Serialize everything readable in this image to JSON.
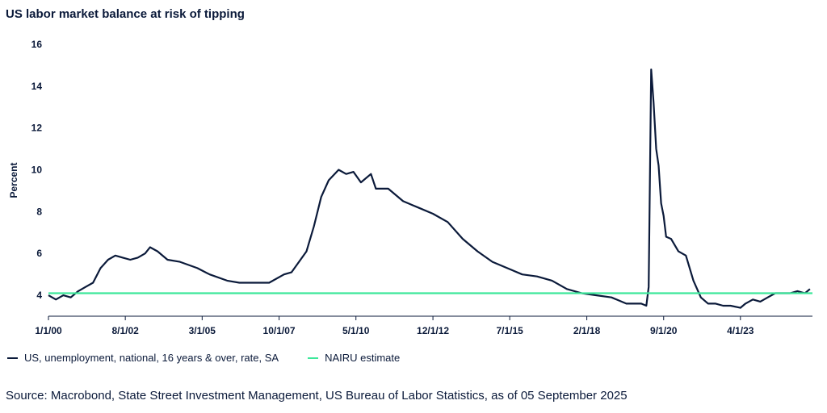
{
  "title": "US labor market balance at risk of tipping",
  "source": "Source: Macrobond, State Street Investment Management, US Bureau of Labor Statistics, as of 05 September 2025",
  "colors": {
    "unemployment": "#0b1a3a",
    "nairu": "#3de89b",
    "axis": "#0b1a3a"
  },
  "chart_data": {
    "type": "line",
    "title": "US labor market balance at risk of tipping",
    "xlabel": "",
    "ylabel": "Percent",
    "ylim": [
      3,
      16
    ],
    "xlim": [
      "2000-01-01",
      "2025-09-01"
    ],
    "yticks": [
      4,
      6,
      8,
      10,
      12,
      14,
      16
    ],
    "xtick_labels": [
      "1/1/00",
      "8/1/02",
      "3/1/05",
      "10/1/07",
      "5/1/10",
      "12/1/12",
      "7/1/15",
      "2/1/18",
      "9/1/20",
      "4/1/23"
    ],
    "xtick_dates": [
      "2000-01-01",
      "2002-08-01",
      "2005-03-01",
      "2007-10-01",
      "2010-05-01",
      "2012-12-01",
      "2015-07-01",
      "2018-02-01",
      "2020-09-01",
      "2023-04-01"
    ],
    "grid": false,
    "legend_position": "bottom-left",
    "series": [
      {
        "name": "US, unemployment, national, 16 years & over, rate, SA",
        "points": [
          [
            "2000-01-01",
            4.0
          ],
          [
            "2000-04-01",
            3.8
          ],
          [
            "2000-07-01",
            4.0
          ],
          [
            "2000-10-01",
            3.9
          ],
          [
            "2001-01-01",
            4.2
          ],
          [
            "2001-04-01",
            4.4
          ],
          [
            "2001-07-01",
            4.6
          ],
          [
            "2001-10-01",
            5.3
          ],
          [
            "2002-01-01",
            5.7
          ],
          [
            "2002-04-01",
            5.9
          ],
          [
            "2002-07-01",
            5.8
          ],
          [
            "2002-10-01",
            5.7
          ],
          [
            "2003-01-01",
            5.8
          ],
          [
            "2003-04-01",
            6.0
          ],
          [
            "2003-06-01",
            6.3
          ],
          [
            "2003-09-01",
            6.1
          ],
          [
            "2004-01-01",
            5.7
          ],
          [
            "2004-06-01",
            5.6
          ],
          [
            "2005-01-01",
            5.3
          ],
          [
            "2005-06-01",
            5.0
          ],
          [
            "2006-01-01",
            4.7
          ],
          [
            "2006-06-01",
            4.6
          ],
          [
            "2007-01-01",
            4.6
          ],
          [
            "2007-06-01",
            4.6
          ],
          [
            "2007-12-01",
            5.0
          ],
          [
            "2008-03-01",
            5.1
          ],
          [
            "2008-06-01",
            5.6
          ],
          [
            "2008-09-01",
            6.1
          ],
          [
            "2008-12-01",
            7.3
          ],
          [
            "2009-03-01",
            8.7
          ],
          [
            "2009-06-01",
            9.5
          ],
          [
            "2009-10-01",
            10.0
          ],
          [
            "2010-01-01",
            9.8
          ],
          [
            "2010-04-01",
            9.9
          ],
          [
            "2010-07-01",
            9.4
          ],
          [
            "2010-11-01",
            9.8
          ],
          [
            "2011-01-01",
            9.1
          ],
          [
            "2011-06-01",
            9.1
          ],
          [
            "2011-12-01",
            8.5
          ],
          [
            "2012-06-01",
            8.2
          ],
          [
            "2012-12-01",
            7.9
          ],
          [
            "2013-06-01",
            7.5
          ],
          [
            "2013-12-01",
            6.7
          ],
          [
            "2014-06-01",
            6.1
          ],
          [
            "2014-12-01",
            5.6
          ],
          [
            "2015-06-01",
            5.3
          ],
          [
            "2015-12-01",
            5.0
          ],
          [
            "2016-06-01",
            4.9
          ],
          [
            "2016-12-01",
            4.7
          ],
          [
            "2017-06-01",
            4.3
          ],
          [
            "2017-12-01",
            4.1
          ],
          [
            "2018-06-01",
            4.0
          ],
          [
            "2018-12-01",
            3.9
          ],
          [
            "2019-06-01",
            3.6
          ],
          [
            "2019-12-01",
            3.6
          ],
          [
            "2020-02-01",
            3.5
          ],
          [
            "2020-03-01",
            4.4
          ],
          [
            "2020-04-01",
            14.8
          ],
          [
            "2020-05-01",
            13.2
          ],
          [
            "2020-06-01",
            11.0
          ],
          [
            "2020-07-01",
            10.2
          ],
          [
            "2020-08-01",
            8.4
          ],
          [
            "2020-09-01",
            7.8
          ],
          [
            "2020-10-01",
            6.8
          ],
          [
            "2020-12-01",
            6.7
          ],
          [
            "2021-03-01",
            6.1
          ],
          [
            "2021-06-01",
            5.9
          ],
          [
            "2021-09-01",
            4.7
          ],
          [
            "2021-12-01",
            3.9
          ],
          [
            "2022-03-01",
            3.6
          ],
          [
            "2022-06-01",
            3.6
          ],
          [
            "2022-09-01",
            3.5
          ],
          [
            "2022-12-01",
            3.5
          ],
          [
            "2023-04-01",
            3.4
          ],
          [
            "2023-06-01",
            3.6
          ],
          [
            "2023-09-01",
            3.8
          ],
          [
            "2023-12-01",
            3.7
          ],
          [
            "2024-03-01",
            3.9
          ],
          [
            "2024-06-01",
            4.1
          ],
          [
            "2024-09-01",
            4.1
          ],
          [
            "2024-12-01",
            4.1
          ],
          [
            "2025-03-01",
            4.2
          ],
          [
            "2025-06-01",
            4.1
          ],
          [
            "2025-08-01",
            4.3
          ]
        ]
      },
      {
        "name": "NAIRU estimate",
        "points": [
          [
            "2000-01-01",
            4.1
          ],
          [
            "2025-09-01",
            4.1
          ]
        ]
      }
    ]
  }
}
